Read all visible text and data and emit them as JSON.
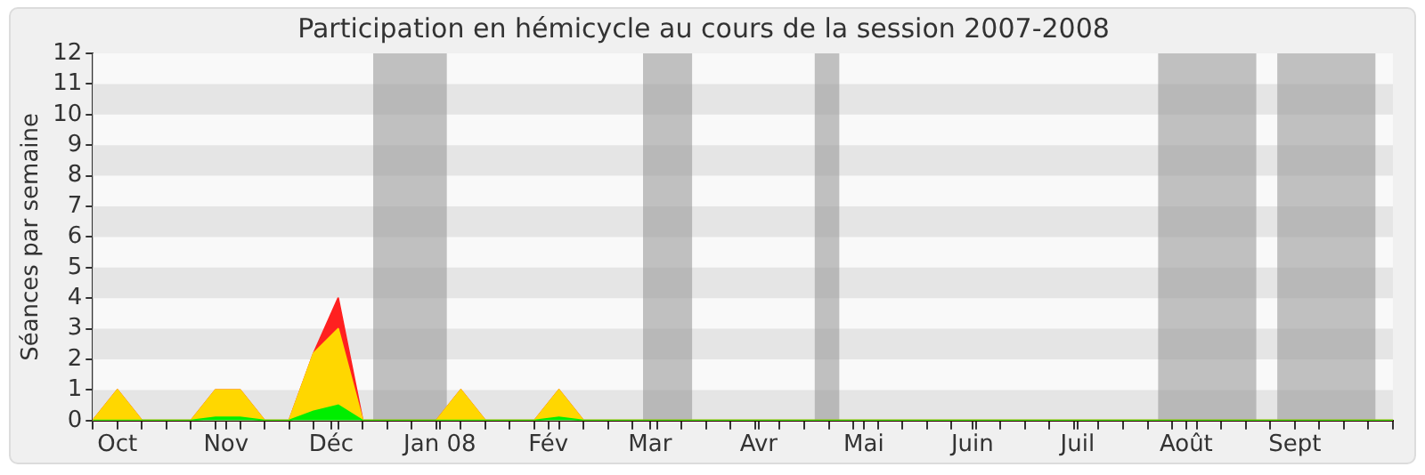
{
  "chart_data": {
    "type": "area",
    "title": "Participation en hémicycle au cours de la session 2007-2008",
    "ylabel": "Séances par semaine",
    "stacked": true,
    "legend": false,
    "xlim": [
      "2007-09-24",
      "2008-09-29"
    ],
    "ylim": [
      0,
      12
    ],
    "yticks": [
      0,
      1,
      2,
      3,
      4,
      5,
      6,
      7,
      8,
      9,
      10,
      11,
      12
    ],
    "x": [
      "2007-09-24",
      "2007-10-01",
      "2007-10-08",
      "2007-10-15",
      "2007-10-22",
      "2007-10-29",
      "2007-11-05",
      "2007-11-12",
      "2007-11-19",
      "2007-11-26",
      "2007-12-03",
      "2007-12-10",
      "2007-12-17",
      "2007-12-24",
      "2007-12-31",
      "2008-01-07",
      "2008-01-14",
      "2008-01-21",
      "2008-01-28",
      "2008-02-04",
      "2008-02-11",
      "2008-02-18",
      "2008-02-25",
      "2008-03-03",
      "2008-03-10",
      "2008-03-17",
      "2008-03-24",
      "2008-03-31",
      "2008-04-07",
      "2008-04-14",
      "2008-04-21",
      "2008-04-28",
      "2008-05-05",
      "2008-05-12",
      "2008-05-19",
      "2008-05-26",
      "2008-06-02",
      "2008-06-09",
      "2008-06-16",
      "2008-06-23",
      "2008-06-30",
      "2008-07-07",
      "2008-07-14",
      "2008-07-21",
      "2008-07-28",
      "2008-08-04",
      "2008-08-11",
      "2008-08-18",
      "2008-08-25",
      "2008-09-01",
      "2008-09-08",
      "2008-09-15",
      "2008-09-22",
      "2008-09-29"
    ],
    "xticks": [
      {
        "value": "2007-09-24",
        "label": null
      },
      {
        "value": "2007-10-01",
        "label": "Oct"
      },
      {
        "value": "2007-10-08",
        "label": null
      },
      {
        "value": "2007-10-15",
        "label": null
      },
      {
        "value": "2007-10-22",
        "label": null
      },
      {
        "value": "2007-10-29",
        "label": null
      },
      {
        "value": "2007-11-01",
        "label": "Nov"
      },
      {
        "value": "2007-11-05",
        "label": null
      },
      {
        "value": "2007-11-12",
        "label": null
      },
      {
        "value": "2007-11-19",
        "label": null
      },
      {
        "value": "2007-11-26",
        "label": null
      },
      {
        "value": "2007-12-01",
        "label": "Déc"
      },
      {
        "value": "2007-12-03",
        "label": null
      },
      {
        "value": "2007-12-10",
        "label": null
      },
      {
        "value": "2007-12-17",
        "label": null
      },
      {
        "value": "2007-12-24",
        "label": null
      },
      {
        "value": "2007-12-31",
        "label": null
      },
      {
        "value": "2008-01-01",
        "label": "Jan 08"
      },
      {
        "value": "2008-01-07",
        "label": null
      },
      {
        "value": "2008-01-14",
        "label": null
      },
      {
        "value": "2008-01-21",
        "label": null
      },
      {
        "value": "2008-01-28",
        "label": null
      },
      {
        "value": "2008-02-01",
        "label": "Fév"
      },
      {
        "value": "2008-02-04",
        "label": null
      },
      {
        "value": "2008-02-11",
        "label": null
      },
      {
        "value": "2008-02-18",
        "label": null
      },
      {
        "value": "2008-02-25",
        "label": null
      },
      {
        "value": "2008-03-01",
        "label": "Mar"
      },
      {
        "value": "2008-03-03",
        "label": null
      },
      {
        "value": "2008-03-10",
        "label": null
      },
      {
        "value": "2008-03-17",
        "label": null
      },
      {
        "value": "2008-03-24",
        "label": null
      },
      {
        "value": "2008-03-31",
        "label": null
      },
      {
        "value": "2008-04-01",
        "label": "Avr"
      },
      {
        "value": "2008-04-07",
        "label": null
      },
      {
        "value": "2008-04-14",
        "label": null
      },
      {
        "value": "2008-04-21",
        "label": null
      },
      {
        "value": "2008-04-28",
        "label": null
      },
      {
        "value": "2008-05-01",
        "label": "Mai"
      },
      {
        "value": "2008-05-05",
        "label": null
      },
      {
        "value": "2008-05-12",
        "label": null
      },
      {
        "value": "2008-05-19",
        "label": null
      },
      {
        "value": "2008-05-26",
        "label": null
      },
      {
        "value": "2008-06-01",
        "label": "Juin"
      },
      {
        "value": "2008-06-02",
        "label": null
      },
      {
        "value": "2008-06-09",
        "label": null
      },
      {
        "value": "2008-06-16",
        "label": null
      },
      {
        "value": "2008-06-23",
        "label": null
      },
      {
        "value": "2008-06-30",
        "label": null
      },
      {
        "value": "2008-07-01",
        "label": "Juil"
      },
      {
        "value": "2008-07-07",
        "label": null
      },
      {
        "value": "2008-07-14",
        "label": null
      },
      {
        "value": "2008-07-21",
        "label": null
      },
      {
        "value": "2008-07-28",
        "label": null
      },
      {
        "value": "2008-08-01",
        "label": "Août"
      },
      {
        "value": "2008-08-04",
        "label": null
      },
      {
        "value": "2008-08-11",
        "label": null
      },
      {
        "value": "2008-08-18",
        "label": null
      },
      {
        "value": "2008-08-25",
        "label": null
      },
      {
        "value": "2008-09-01",
        "label": "Sept"
      },
      {
        "value": "2008-09-08",
        "label": null
      },
      {
        "value": "2008-09-15",
        "label": null
      },
      {
        "value": "2008-09-22",
        "label": null
      },
      {
        "value": "2008-09-29",
        "label": null
      }
    ],
    "series": [
      {
        "color": "#00ee00",
        "values": [
          0,
          0,
          0,
          0,
          0,
          0.1,
          0.1,
          0,
          0,
          0.3,
          0.5,
          0,
          0,
          0,
          0,
          0,
          0,
          0,
          0,
          0.1,
          0,
          0,
          0,
          0,
          0,
          0,
          0,
          0,
          0,
          0,
          0,
          0,
          0,
          0,
          0,
          0,
          0,
          0,
          0,
          0,
          0,
          0,
          0,
          0,
          0,
          0,
          0,
          0,
          0,
          0,
          0,
          0,
          0,
          0
        ]
      },
      {
        "color": "#ffd700",
        "values": [
          0,
          1,
          0,
          0,
          0,
          0.9,
          0.9,
          0,
          0,
          1.9,
          2.5,
          0,
          0,
          0,
          0,
          1,
          0,
          0,
          0,
          0.9,
          0,
          0,
          0,
          0,
          0,
          0,
          0,
          0,
          0,
          0,
          0,
          0,
          0,
          0,
          0,
          0,
          0,
          0,
          0,
          0,
          0,
          0,
          0,
          0,
          0,
          0,
          0,
          0,
          0,
          0,
          0,
          0,
          0,
          0
        ]
      },
      {
        "color": "#ff2020",
        "values": [
          0,
          0,
          0,
          0,
          0,
          0,
          0,
          0,
          0,
          0,
          1,
          0,
          0,
          0,
          0,
          0,
          0,
          0,
          0,
          0,
          0,
          0,
          0,
          0,
          0,
          0,
          0,
          0,
          0,
          0,
          0,
          0,
          0,
          0,
          0,
          0,
          0,
          0,
          0,
          0,
          0,
          0,
          0,
          0,
          0,
          0,
          0,
          0,
          0,
          0,
          0,
          0,
          0,
          0
        ]
      }
    ],
    "bands": [
      {
        "axis": "x",
        "from": "2007-12-13",
        "to": "2008-01-03",
        "color": "#999999"
      },
      {
        "axis": "x",
        "from": "2008-02-28",
        "to": "2008-03-13",
        "color": "#999999"
      },
      {
        "axis": "x",
        "from": "2008-04-17",
        "to": "2008-04-24",
        "color": "#999999"
      },
      {
        "axis": "x",
        "from": "2008-07-24",
        "to": "2008-08-21",
        "color": "#999999"
      },
      {
        "axis": "x",
        "from": "2008-08-27",
        "to": "2008-09-24",
        "color": "#999999"
      }
    ]
  }
}
